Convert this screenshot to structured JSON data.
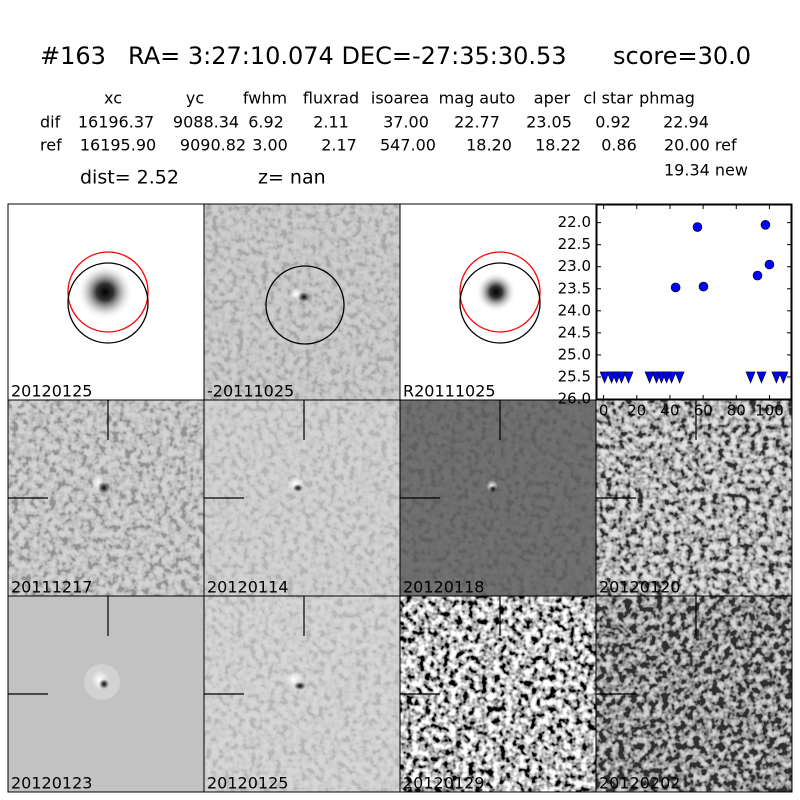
{
  "header": {
    "id": "#163",
    "coords": "RA= 3:27:10.074 DEC=-27:35:30.53",
    "score": "score=30.0"
  },
  "table": {
    "columns": [
      "xc",
      "yc",
      "fwhm",
      "fluxrad",
      "isoarea",
      "mag auto",
      "aper",
      "cl star",
      "phmag"
    ],
    "rows": [
      [
        "dif",
        "16196.37",
        "9088.34",
        "6.92",
        "2.11",
        "37.00",
        "22.77",
        "23.05",
        "0.92",
        "22.94"
      ],
      [
        "ref",
        "16195.90",
        "9090.82",
        "3.00",
        "2.17",
        "547.00",
        "18.20",
        "18.22",
        "0.86",
        "20.00 ref"
      ]
    ],
    "extra": "19.34 new"
  },
  "dist": "dist=  2.52",
  "z": "z=   nan",
  "panels": [
    {
      "label": "20120125"
    },
    {
      "label": "-20111025"
    },
    {
      "label": "R20111025"
    },
    {
      "label": "20111217"
    },
    {
      "label": "20120114"
    },
    {
      "label": "20120118"
    },
    {
      "label": "20120120"
    },
    {
      "label": "20120123"
    },
    {
      "label": "20120125",
      "label_color": "#ff0000"
    },
    {
      "label": "20120129"
    },
    {
      "label": "20120202"
    }
  ],
  "chart_data": {
    "type": "scatter",
    "xlim": [
      -4,
      113
    ],
    "ylim": [
      21.6,
      26.0
    ],
    "y_inverted": true,
    "xticks": [
      0,
      20,
      40,
      60,
      80,
      100
    ],
    "yticks": [
      {
        "value": 22,
        "label": "22.0"
      },
      {
        "value": 22.5,
        "label": "22.5"
      },
      {
        "value": 23,
        "label": "23.0"
      },
      {
        "value": 23.5,
        "label": "23.5"
      },
      {
        "value": 24,
        "label": "24.0"
      },
      {
        "value": 24.5,
        "label": "24.5"
      },
      {
        "value": 25,
        "label": "25.0"
      },
      {
        "value": 25.5,
        "label": "25.5"
      },
      {
        "value": 26,
        "label": "26.0"
      }
    ],
    "series": [
      {
        "color": "#0000ff",
        "marker": "circle",
        "x": [
          43.4,
          56.6,
          60.2,
          92.8,
          97.6,
          100
        ],
        "values": [
          23.47,
          22.1,
          23.45,
          23.2,
          22.05,
          22.95
        ]
      },
      {
        "color": "#0000ff",
        "marker": "triangle-down",
        "x": [
          0.6,
          4.8,
          7.8,
          10.8,
          15,
          27.7,
          31.9,
          34.9,
          38,
          41,
          45.8,
          88.6,
          95.2,
          104.2,
          108.4
        ],
        "values": [
          25.5,
          25.5,
          25.5,
          25.5,
          25.5,
          25.5,
          25.5,
          25.5,
          25.5,
          25.5,
          25.5,
          25.5,
          25.5,
          25.5,
          25.5
        ]
      }
    ]
  }
}
